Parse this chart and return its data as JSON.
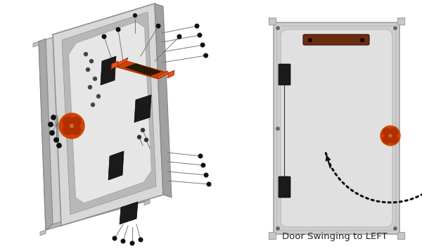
{
  "bg_color": "#ffffff",
  "fig_width": 6.0,
  "fig_height": 3.57,
  "dpi": 100,
  "title_text": "Door Swinging to LEFT",
  "panel_gray": "#d2d2d2",
  "panel_light": "#e8e8e8",
  "frame_dark": "#8a8a8a",
  "frame_mid": "#b0b0b0",
  "frame_light": "#c8c8c8",
  "hinge_black": "#1a1a1a",
  "orange_dark": "#b03000",
  "orange_mid": "#cc4400",
  "orange_light": "#e05520",
  "handle_brown": "#6b2c10",
  "screw_dark": "#111111",
  "line_thin": "#888888",
  "dot_black": "#111111"
}
